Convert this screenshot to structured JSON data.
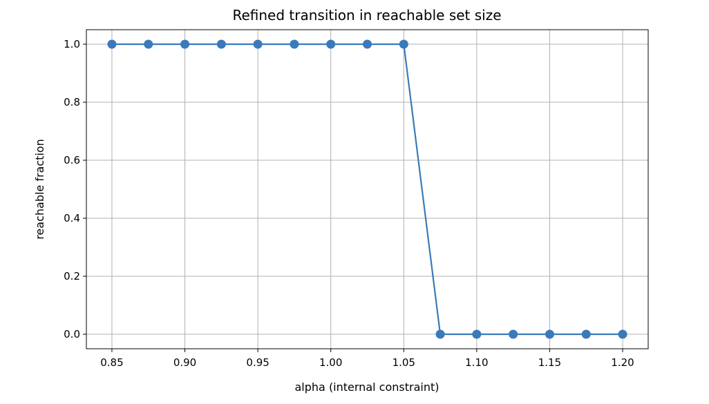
{
  "chart_data": {
    "type": "line",
    "title": "Refined transition in reachable set size",
    "xlabel": "alpha (internal constraint)",
    "ylabel": "reachable fraction",
    "x": [
      0.85,
      0.875,
      0.9,
      0.925,
      0.95,
      0.975,
      1.0,
      1.025,
      1.05,
      1.075,
      1.1,
      1.125,
      1.15,
      1.175,
      1.2
    ],
    "series": [
      {
        "values": [
          1.0,
          1.0,
          1.0,
          1.0,
          1.0,
          1.0,
          1.0,
          1.0,
          1.0,
          0.0,
          0.0,
          0.0,
          0.0,
          0.0,
          0.0
        ],
        "color": "#3a7ab8",
        "marker": "circle"
      }
    ],
    "xlim": [
      0.8325,
      1.2175
    ],
    "ylim": [
      -0.05,
      1.05
    ],
    "xticks": [
      0.85,
      0.9,
      0.95,
      1.0,
      1.05,
      1.1,
      1.15,
      1.2
    ],
    "xtick_labels": [
      "0.85",
      "0.90",
      "0.95",
      "1.00",
      "1.05",
      "1.10",
      "1.15",
      "1.20"
    ],
    "yticks": [
      0.0,
      0.2,
      0.4,
      0.6,
      0.8,
      1.0
    ],
    "ytick_labels": [
      "0.0",
      "0.2",
      "0.4",
      "0.6",
      "0.8",
      "1.0"
    ],
    "grid": true,
    "legend": "none"
  }
}
